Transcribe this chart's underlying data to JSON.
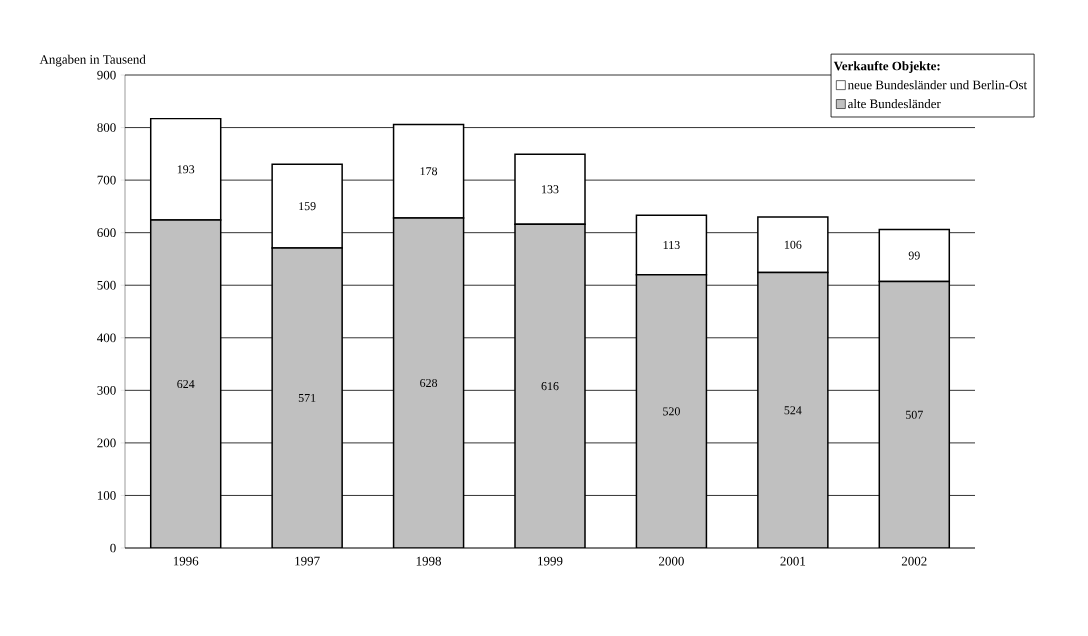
{
  "chart_data": {
    "type": "bar",
    "stacked": true,
    "legend_title": "Verkaufte Objekte:",
    "ylabel": "Angaben in Tausend",
    "categories": [
      "1996",
      "1997",
      "1998",
      "1999",
      "2000",
      "2001",
      "2002"
    ],
    "series": [
      {
        "name": "alte Bundesländer",
        "color": "#c0c0c0",
        "values": [
          624,
          571,
          628,
          616,
          520,
          524,
          507
        ]
      },
      {
        "name": "neue Bundesländer und Berlin-Ost",
        "color": "#ffffff",
        "values": [
          193,
          159,
          178,
          133,
          113,
          106,
          99
        ]
      }
    ],
    "ylim": [
      0,
      900
    ],
    "yticks": [
      0,
      100,
      200,
      300,
      400,
      500,
      600,
      700,
      800,
      900
    ],
    "grid": "y",
    "legend": "top right",
    "data_labels": true
  }
}
